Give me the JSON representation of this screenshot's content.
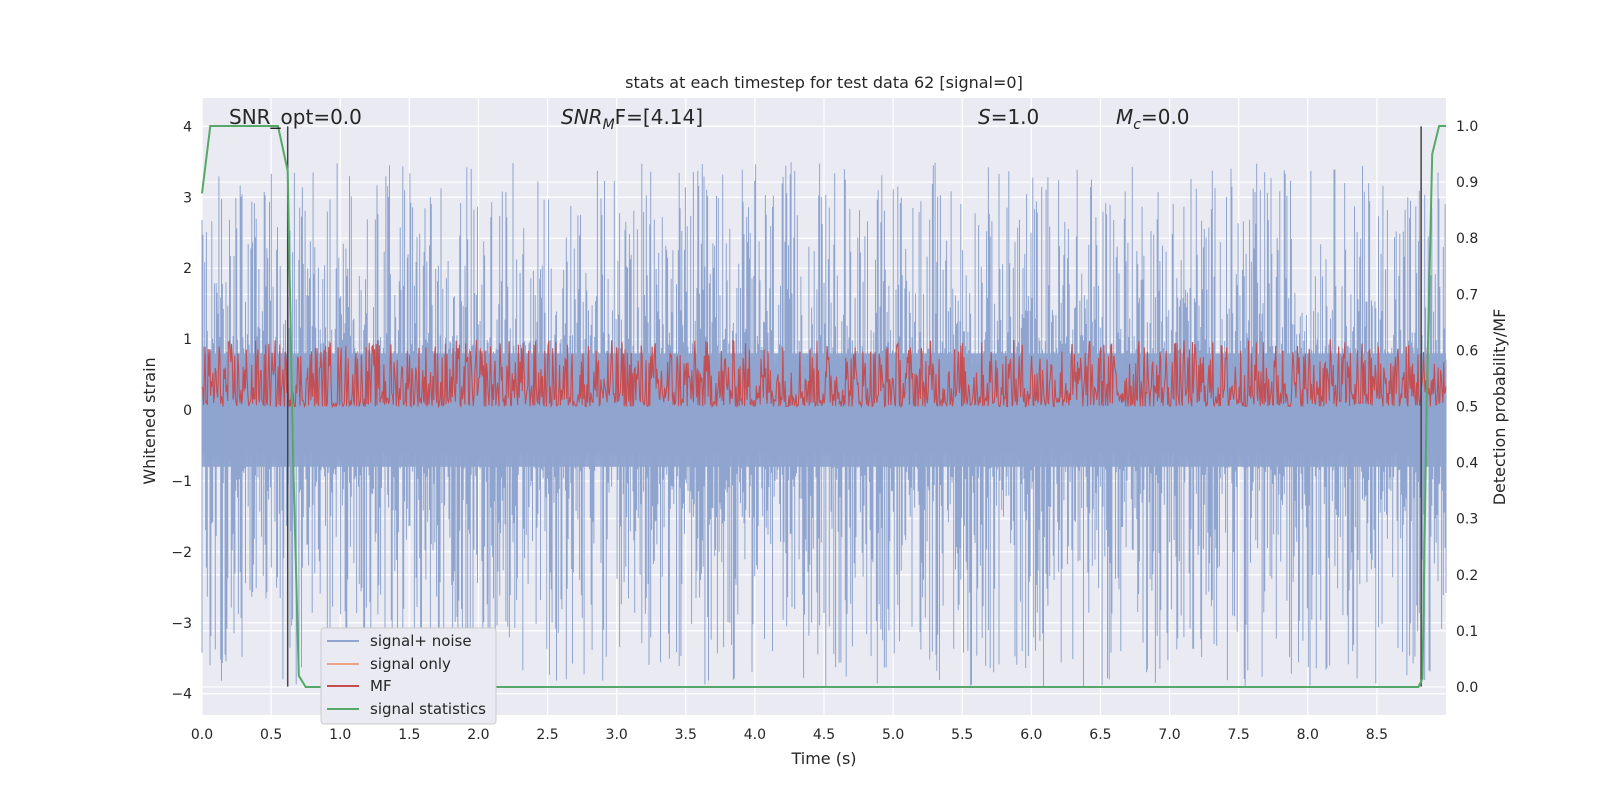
{
  "chart_data": {
    "type": "line",
    "title": "stats at each timestep for test data 62 [signal=0]",
    "xlabel": "Time (s)",
    "ylabel_left": "Whitened strain",
    "ylabel_right": "Detection probability/MF",
    "xlim": [
      0.0,
      9.0
    ],
    "ylim_left": [
      -4.3,
      4.4
    ],
    "ylim_right": [
      -0.05,
      1.05
    ],
    "x_ticks": [
      0.0,
      0.5,
      1.0,
      1.5,
      2.0,
      2.5,
      3.0,
      3.5,
      4.0,
      4.5,
      5.0,
      5.5,
      6.0,
      6.5,
      7.0,
      7.5,
      8.0,
      8.5
    ],
    "x_tick_labels": [
      "0.0",
      "0.5",
      "1.0",
      "1.5",
      "2.0",
      "2.5",
      "3.0",
      "3.5",
      "4.0",
      "4.5",
      "5.0",
      "5.5",
      "6.0",
      "6.5",
      "7.0",
      "7.5",
      "8.0",
      "8.5"
    ],
    "y_left_ticks": [
      4,
      3,
      2,
      1,
      0,
      -1,
      -2,
      -3,
      -4
    ],
    "y_left_tick_labels": [
      "4",
      "3",
      "2",
      "1",
      "0",
      "−1",
      "−2",
      "−3",
      "−4"
    ],
    "y_right_ticks": [
      1.0,
      0.9,
      0.8,
      0.7,
      0.6,
      0.5,
      0.4,
      0.3,
      0.2,
      0.1,
      0.0
    ],
    "y_right_tick_labels": [
      "1.0",
      "0.9",
      "0.8",
      "0.7",
      "0.6",
      "0.5",
      "0.4",
      "0.3",
      "0.2",
      "0.1",
      "0.0"
    ],
    "grid": true,
    "legend_position": "lower-left",
    "annotations": {
      "snr_opt": "SNR_opt=0.0",
      "snr_mf_base": "SNR",
      "snr_mf_sub": "M",
      "snr_mf_rest": "F=[4.14]",
      "s_label": "S",
      "s_value": "=1.0",
      "mc_label": "M",
      "mc_sub": "c",
      "mc_value": "=0.0"
    },
    "vertical_markers": [
      0.62,
      8.82
    ],
    "series": [
      {
        "name": "signal+ noise",
        "axis": "left",
        "color": "#8fa5cf",
        "description": "noise band",
        "envelope_upper_typical": 1.6,
        "envelope_lower_typical": -1.6,
        "peak_max": 3.5,
        "peak_min": -3.9
      },
      {
        "name": "signal only",
        "axis": "left",
        "color": "#e8a384",
        "values": []
      },
      {
        "name": "MF",
        "axis": "right",
        "color": "#c44e52",
        "baseline": 0.52,
        "range": [
          0.5,
          0.62
        ]
      },
      {
        "name": "signal statistics",
        "axis": "right",
        "color": "#55a868",
        "x": [
          0.0,
          0.06,
          0.55,
          0.62,
          0.66,
          0.7,
          0.75,
          1.6,
          1.65,
          1.7,
          8.1,
          8.8,
          8.83,
          8.86,
          8.9,
          8.95,
          9.0
        ],
        "y": [
          0.88,
          1.0,
          1.0,
          0.92,
          0.4,
          0.02,
          0.0,
          0.0,
          0.012,
          0.0,
          0.0,
          0.0,
          0.015,
          0.5,
          0.95,
          1.0,
          1.0
        ]
      }
    ]
  }
}
